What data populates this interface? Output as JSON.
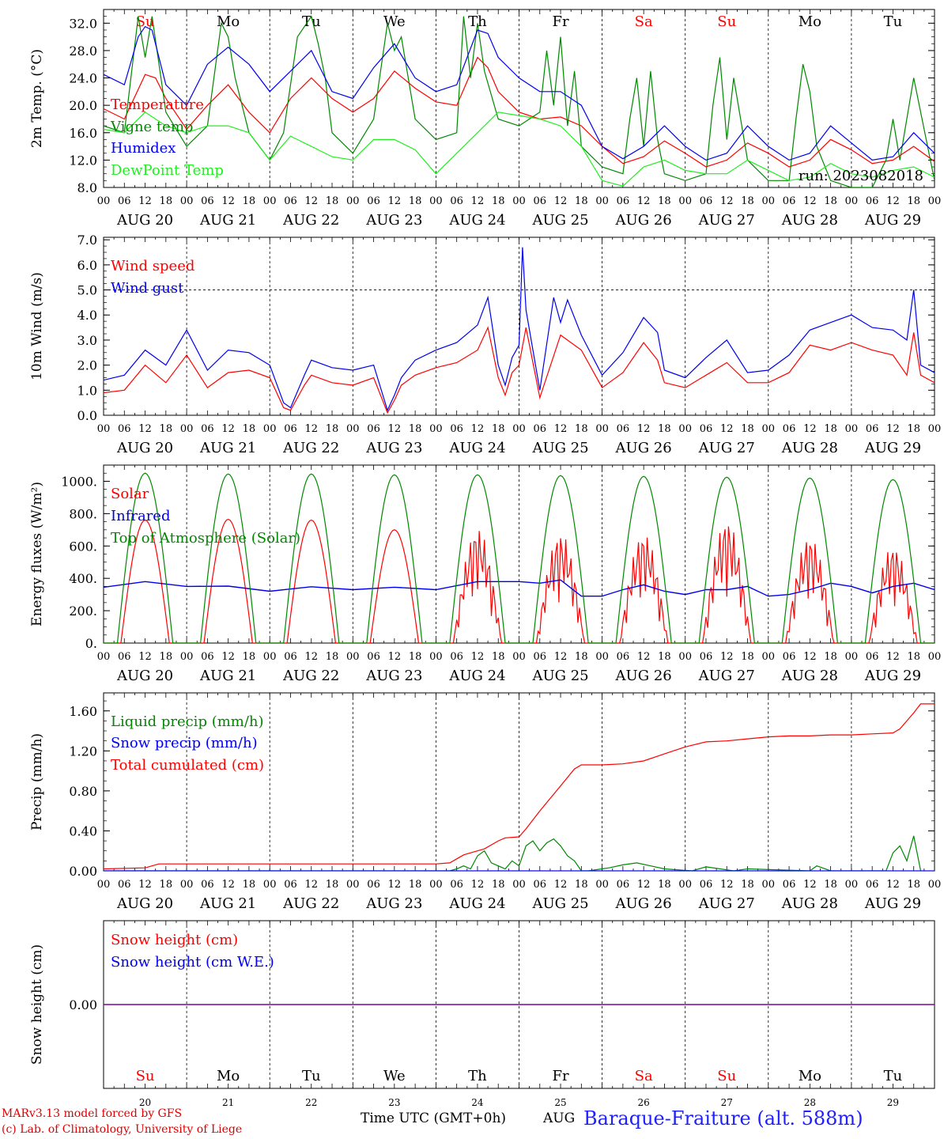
{
  "days": {
    "dates": [
      "AUG 20",
      "AUG 21",
      "AUG 22",
      "AUG 23",
      "AUG 24",
      "AUG 25",
      "AUG 26",
      "AUG 27",
      "AUG 28",
      "AUG 29"
    ],
    "day_numbers": [
      "20",
      "21",
      "22",
      "23",
      "24",
      "25",
      "26",
      "27",
      "28",
      "29"
    ],
    "weekdays": [
      "Su",
      "Mo",
      "Tu",
      "We",
      "Th",
      "Fr",
      "Sa",
      "Su",
      "Mo",
      "Tu"
    ],
    "weekend": [
      true,
      false,
      false,
      false,
      false,
      false,
      true,
      true,
      false,
      false
    ],
    "hour_ticks": [
      "00",
      "06",
      "12",
      "18"
    ],
    "end_tick": "00"
  },
  "colors": {
    "red": "#ff0000",
    "green": "#008800",
    "blue": "#0000ee",
    "lightgreen": "#22ee22",
    "purple": "#8000a0"
  },
  "chart_data": [
    {
      "type": "line",
      "id": "temp",
      "ylabel": "2m Temp. (°C)",
      "ylim": [
        8,
        34
      ],
      "ticks": [
        "8.0",
        "12.0",
        "16.0",
        "20.0",
        "24.0",
        "28.0",
        "32.0"
      ],
      "tick_values": [
        8,
        12,
        16,
        20,
        24,
        28,
        32
      ],
      "run_label": "run: 2023082018",
      "x_unit": "hours since AUG 20 00 UTC",
      "series": [
        {
          "name": "Temperature",
          "color": "#ff0000",
          "x": [
            0,
            6,
            12,
            15,
            18,
            24,
            30,
            36,
            39,
            42,
            48,
            54,
            60,
            66,
            72,
            78,
            84,
            90,
            96,
            102,
            108,
            111,
            114,
            120,
            126,
            132,
            138,
            144,
            150,
            156,
            162,
            168,
            174,
            180,
            186,
            192,
            198,
            204,
            210,
            216,
            222,
            228,
            234,
            240
          ],
          "y": [
            19.5,
            18,
            24.5,
            24,
            21,
            16.5,
            20,
            23,
            21,
            19,
            16,
            21,
            24,
            21,
            19,
            21,
            25,
            22.5,
            20.5,
            20,
            27,
            25.5,
            22,
            19,
            18,
            18.3,
            17,
            14,
            11.5,
            12.5,
            14.8,
            13,
            11,
            12,
            14.5,
            13,
            11,
            12,
            15,
            13.5,
            11.5,
            12,
            14,
            11.8
          ]
        },
        {
          "name": "Vigne temp",
          "color": "#008800",
          "x": [
            0,
            6,
            10,
            12,
            14,
            16,
            18,
            24,
            30,
            34,
            36,
            38,
            42,
            48,
            52,
            56,
            60,
            62,
            64,
            66,
            72,
            78,
            82,
            84,
            86,
            90,
            96,
            102,
            104,
            106,
            108,
            110,
            114,
            120,
            126,
            128,
            130,
            132,
            134,
            136,
            138,
            144,
            150,
            152,
            154,
            156,
            158,
            160,
            162,
            168,
            174,
            176,
            178,
            180,
            182,
            186,
            192,
            198,
            200,
            202,
            204,
            206,
            210,
            216,
            222,
            226,
            228,
            230,
            234,
            240
          ],
          "y": [
            17,
            16,
            33,
            27,
            33,
            26,
            19,
            14,
            17,
            32,
            30,
            24,
            16,
            12,
            16,
            30,
            33,
            29,
            24,
            16,
            13,
            18,
            32,
            28,
            30,
            18,
            15,
            16,
            33,
            24,
            32,
            25,
            18,
            17,
            19,
            28,
            20,
            30,
            17,
            25,
            14,
            11,
            10,
            18,
            24,
            14,
            25,
            15,
            10,
            9,
            10,
            20,
            27,
            15,
            24,
            12,
            9,
            9,
            18,
            26,
            22,
            14,
            9,
            8,
            8,
            12,
            18,
            12,
            24,
            9
          ]
        },
        {
          "name": "Humidex",
          "color": "#0000ee",
          "x": [
            0,
            6,
            10,
            12,
            14,
            18,
            24,
            30,
            36,
            42,
            48,
            54,
            60,
            66,
            72,
            78,
            84,
            90,
            96,
            102,
            108,
            111,
            114,
            120,
            126,
            132,
            138,
            144,
            150,
            156,
            162,
            168,
            174,
            180,
            186,
            192,
            198,
            204,
            210,
            216,
            222,
            228,
            234,
            240
          ],
          "y": [
            24.5,
            23,
            30,
            31.5,
            31,
            23,
            20,
            26,
            28.5,
            26,
            22,
            25,
            28,
            22,
            21,
            25.5,
            29,
            24,
            22,
            23,
            31,
            30.5,
            27,
            24,
            22,
            22,
            20,
            14,
            12.2,
            14,
            17,
            14,
            12,
            13,
            17,
            14,
            12,
            13,
            17,
            14.5,
            12,
            12.5,
            16,
            13
          ]
        },
        {
          "name": "DewPoint Temp",
          "color": "#22ee22",
          "x": [
            0,
            6,
            12,
            18,
            24,
            30,
            36,
            42,
            48,
            54,
            60,
            66,
            72,
            78,
            84,
            90,
            96,
            102,
            108,
            114,
            120,
            126,
            132,
            138,
            144,
            150,
            156,
            162,
            168,
            174,
            180,
            186,
            192,
            198,
            204,
            210,
            216,
            222,
            228,
            234,
            240
          ],
          "y": [
            16.5,
            16,
            19,
            17,
            16,
            17,
            17,
            16,
            12,
            15.5,
            14,
            12.5,
            12,
            15,
            15,
            13.5,
            10,
            13,
            16,
            19,
            18.5,
            18,
            17,
            14,
            9,
            8.2,
            11,
            12,
            10.5,
            10,
            10,
            12,
            10.5,
            9,
            9.5,
            11.5,
            10,
            9.5,
            10.5,
            11,
            9.5
          ]
        }
      ]
    },
    {
      "type": "line",
      "id": "wind",
      "ylabel": "10m Wind (m/s)",
      "ylim": [
        0,
        7.1
      ],
      "ticks": [
        "0.0",
        "1.0",
        "2.0",
        "3.0",
        "4.0",
        "5.0",
        "6.0",
        "7.0"
      ],
      "tick_values": [
        0,
        1,
        2,
        3,
        4,
        5,
        6,
        7
      ],
      "ref_line": 5.0,
      "x_unit": "hours since AUG 20 00 UTC",
      "series": [
        {
          "name": "Wind speed",
          "color": "#ff0000",
          "x": [
            0,
            6,
            12,
            18,
            24,
            30,
            36,
            42,
            48,
            52,
            54,
            58,
            60,
            66,
            72,
            78,
            82,
            84,
            86,
            90,
            96,
            102,
            108,
            111,
            114,
            116,
            118,
            120,
            122,
            126,
            132,
            138,
            144,
            150,
            156,
            160,
            162,
            168,
            174,
            180,
            186,
            192,
            198,
            204,
            210,
            216,
            222,
            228,
            232,
            234,
            236,
            240
          ],
          "y": [
            0.9,
            1,
            2,
            1.3,
            2.4,
            1.1,
            1.7,
            1.8,
            1.5,
            0.3,
            0.2,
            1.2,
            1.6,
            1.3,
            1.2,
            1.5,
            0.1,
            0.6,
            1.2,
            1.6,
            1.9,
            2.1,
            2.6,
            3.5,
            1.5,
            0.8,
            1.7,
            2,
            3.5,
            0.7,
            3.2,
            2.6,
            1.1,
            1.7,
            2.9,
            2.2,
            1.3,
            1.1,
            1.6,
            2.1,
            1.3,
            1.3,
            1.7,
            2.8,
            2.6,
            2.9,
            2.6,
            2.4,
            1.6,
            3.3,
            1.6,
            1.3
          ]
        },
        {
          "name": "Wind gust",
          "color": "#0000ee",
          "x": [
            0,
            6,
            12,
            18,
            24,
            30,
            36,
            42,
            48,
            52,
            54,
            58,
            60,
            66,
            72,
            78,
            82,
            84,
            86,
            90,
            96,
            102,
            108,
            111,
            114,
            116,
            118,
            120,
            121,
            122,
            126,
            130,
            132,
            134,
            138,
            144,
            150,
            156,
            160,
            162,
            168,
            174,
            180,
            186,
            192,
            198,
            204,
            210,
            216,
            222,
            228,
            232,
            234,
            236,
            240
          ],
          "y": [
            1.4,
            1.6,
            2.6,
            2,
            3.4,
            1.8,
            2.6,
            2.5,
            2,
            0.5,
            0.3,
            1.6,
            2.2,
            1.9,
            1.8,
            2,
            0.2,
            0.8,
            1.5,
            2.2,
            2.6,
            2.9,
            3.6,
            4.7,
            2,
            1.2,
            2.3,
            2.8,
            6.7,
            4.2,
            1,
            4.7,
            3.7,
            4.6,
            3.2,
            1.6,
            2.5,
            3.9,
            3.3,
            1.8,
            1.5,
            2.3,
            3,
            1.7,
            1.8,
            2.4,
            3.4,
            3.7,
            4,
            3.5,
            3.4,
            3,
            5,
            2,
            1.7
          ]
        }
      ]
    },
    {
      "type": "line",
      "id": "energy",
      "ylabel": "Energy fluxes (W/m²)",
      "ylim": [
        0,
        1100
      ],
      "ticks": [
        "0.",
        "200.",
        "400.",
        "600.",
        "800.",
        "1000."
      ],
      "tick_values": [
        0,
        200,
        400,
        600,
        800,
        1000
      ],
      "x_unit": "hours since AUG 20 00 UTC",
      "toa_peaks": [
        1050,
        1045,
        1045,
        1040,
        1040,
        1035,
        1030,
        1025,
        1020,
        1010
      ],
      "solar_peaks": [
        760,
        765,
        760,
        700,
        710,
        680,
        680,
        760,
        660,
        600
      ],
      "series": [
        {
          "name": "Solar",
          "color": "#ff0000"
        },
        {
          "name": "Infrared",
          "color": "#0000ee",
          "x": [
            0,
            12,
            24,
            36,
            48,
            60,
            72,
            84,
            96,
            108,
            120,
            126,
            132,
            138,
            144,
            150,
            156,
            162,
            168,
            174,
            180,
            186,
            192,
            198,
            204,
            210,
            216,
            222,
            228,
            234,
            240
          ],
          "y": [
            345,
            380,
            350,
            352,
            320,
            348,
            330,
            345,
            330,
            380,
            380,
            370,
            390,
            290,
            290,
            330,
            360,
            320,
            300,
            330,
            330,
            350,
            290,
            300,
            330,
            370,
            350,
            310,
            350,
            370,
            330
          ]
        },
        {
          "name": "Top of Atmosphere (Solar)",
          "color": "#008800"
        }
      ]
    },
    {
      "type": "line",
      "id": "precip",
      "ylabel": "Precip (mm/h)",
      "ylim": [
        0,
        1.78
      ],
      "ticks": [
        "0.00",
        "0.40",
        "0.80",
        "1.20",
        "1.60"
      ],
      "tick_values": [
        0,
        0.4,
        0.8,
        1.2,
        1.6
      ],
      "x_unit": "hours since AUG 20 00 UTC",
      "series": [
        {
          "name": "Liquid precip (mm/h)",
          "color": "#008800",
          "x": [
            0,
            100,
            102,
            104,
            106,
            108,
            110,
            112,
            114,
            116,
            118,
            120,
            122,
            124,
            126,
            128,
            130,
            132,
            134,
            136,
            138,
            140,
            146,
            150,
            154,
            158,
            162,
            170,
            174,
            182,
            186,
            204,
            206,
            210,
            216,
            226,
            228,
            230,
            232,
            234,
            236
          ],
          "y": [
            0,
            0,
            0.02,
            0.05,
            0.02,
            0.15,
            0.2,
            0.08,
            0.05,
            0.02,
            0.1,
            0.05,
            0.25,
            0.3,
            0.2,
            0.28,
            0.32,
            0.25,
            0.15,
            0.1,
            0,
            0,
            0.03,
            0.06,
            0.08,
            0.05,
            0.02,
            0,
            0.04,
            0,
            0.02,
            0,
            0.05,
            0,
            0,
            0,
            0.18,
            0.25,
            0.1,
            0.35,
            0
          ],
          "labeled": true
        },
        {
          "name": "Snow precip (mm/h)",
          "color": "#0000ee",
          "x": [
            0,
            240
          ],
          "y": [
            0,
            0
          ]
        },
        {
          "name": "Total cumulated (cm)",
          "color": "#ff0000",
          "x": [
            0,
            12,
            14,
            16,
            24,
            48,
            72,
            96,
            100,
            102,
            104,
            106,
            108,
            110,
            114,
            116,
            120,
            122,
            126,
            132,
            136,
            138,
            144,
            150,
            156,
            162,
            168,
            174,
            180,
            186,
            192,
            198,
            204,
            210,
            216,
            222,
            228,
            230,
            232,
            234,
            236,
            240
          ],
          "y": [
            0.02,
            0.03,
            0.05,
            0.07,
            0.07,
            0.07,
            0.07,
            0.07,
            0.08,
            0.12,
            0.16,
            0.18,
            0.2,
            0.22,
            0.3,
            0.33,
            0.34,
            0.42,
            0.6,
            0.85,
            1.02,
            1.06,
            1.06,
            1.07,
            1.1,
            1.17,
            1.24,
            1.29,
            1.3,
            1.32,
            1.34,
            1.35,
            1.35,
            1.36,
            1.36,
            1.37,
            1.38,
            1.42,
            1.5,
            1.58,
            1.67,
            1.67
          ]
        }
      ]
    },
    {
      "type": "line",
      "id": "snow",
      "ylabel": "Snow height (cm)",
      "ylim": [
        -1,
        1
      ],
      "ticks": [
        "0.00"
      ],
      "tick_values": [
        0
      ],
      "x_unit": "hours since AUG 20 00 UTC",
      "series": [
        {
          "name": "Snow height (cm)",
          "color": "#ff0000",
          "x": [
            0,
            240
          ],
          "y": [
            0,
            0
          ]
        },
        {
          "name": "Snow height (cm W.E.)",
          "color": "#0000ee",
          "x": [
            0,
            240
          ],
          "y": [
            0,
            0
          ]
        }
      ]
    }
  ],
  "xlabel": "Time UTC (GMT+0h)",
  "month_label": "AUG",
  "footer": {
    "credit_line1": "MARv3.13 model forced by GFS",
    "credit_line2": "(c) Lab. of Climatology, University of Liege",
    "station": "Baraque-Fraiture (alt. 588m)"
  }
}
